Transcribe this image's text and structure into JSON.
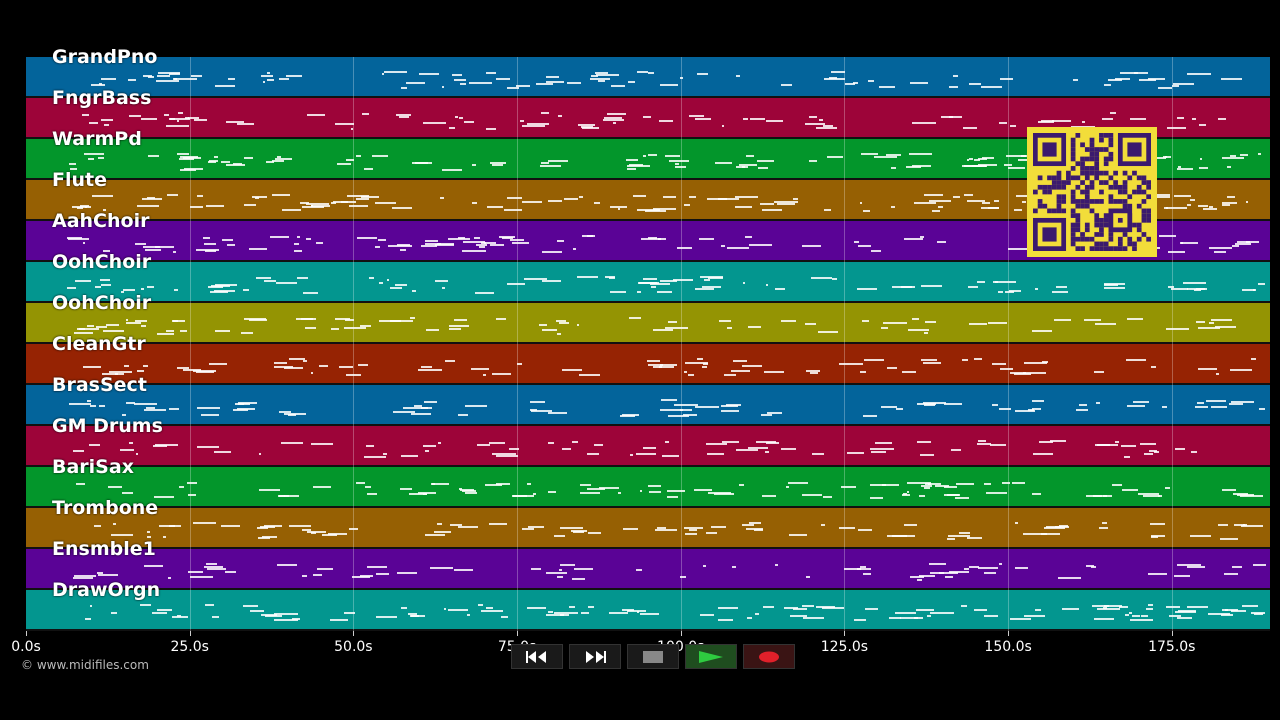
{
  "tracks": [
    {
      "label": "GrandPno",
      "color": "#03649b"
    },
    {
      "label": "FngrBass",
      "color": "#9d0439"
    },
    {
      "label": "WarmPd",
      "color": "#03962b"
    },
    {
      "label": "Flute",
      "color": "#966003"
    },
    {
      "label": "AahChoir",
      "color": "#5a0396"
    },
    {
      "label": "OohChoir",
      "color": "#03968f"
    },
    {
      "label": "OohChoir",
      "color": "#949403"
    },
    {
      "label": "CleanGtr",
      "color": "#962303"
    },
    {
      "label": "BrasSect",
      "color": "#03649b"
    },
    {
      "label": "GM Drums",
      "color": "#9d0439"
    },
    {
      "label": "BariSax",
      "color": "#03962b"
    },
    {
      "label": "Trombone",
      "color": "#966003"
    },
    {
      "label": "Ensmble1",
      "color": "#5a0396"
    },
    {
      "label": "DrawOrgn",
      "color": "#03968f"
    }
  ],
  "timeline": {
    "ticks": [
      "0.0s",
      "25.0s",
      "50.0s",
      "75.0s",
      "100.0s",
      "125.0s",
      "150.0s",
      "175.0s"
    ],
    "tick_seconds": [
      0,
      25,
      50,
      75,
      100,
      125,
      150,
      175
    ],
    "duration_seconds": 190
  },
  "transport": [
    {
      "name": "rewind-button",
      "icon": "rewind-icon"
    },
    {
      "name": "fast-forward-button",
      "icon": "fast-forward-icon"
    },
    {
      "name": "stop-button",
      "icon": "stop-icon"
    },
    {
      "name": "play-button",
      "icon": "play-icon"
    },
    {
      "name": "record-button",
      "icon": "record-icon"
    }
  ],
  "copyright": "© www.midifiles.com",
  "qr_icon": "qr-code-icon",
  "colors": {
    "qr_bg": "#f2dd3a",
    "qr_fg": "#3b1a6e",
    "play": "#2ecc40",
    "record": "#e0202a",
    "stop": "#888888"
  }
}
